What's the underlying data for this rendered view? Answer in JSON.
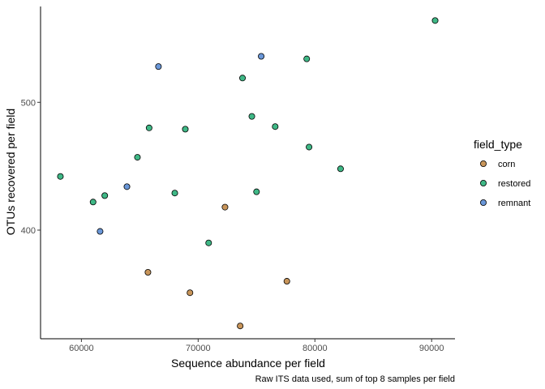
{
  "chart_data": {
    "type": "scatter",
    "xlabel": "Sequence abundance per field",
    "ylabel": "OTUs recovered per field",
    "caption": "Raw ITS data used, sum of top 8 samples per field",
    "xlim": [
      56500,
      92000
    ],
    "ylim": [
      315,
      575
    ],
    "x_ticks": [
      60000,
      70000,
      80000,
      90000
    ],
    "x_tick_labels": [
      "60000",
      "70000",
      "80000",
      "90000"
    ],
    "y_ticks": [
      400,
      500
    ],
    "y_tick_labels": [
      "400",
      "500"
    ],
    "grid": false,
    "legend": {
      "title": "field_type",
      "position": "right",
      "entries": [
        {
          "name": "corn",
          "color": "#C8955A"
        },
        {
          "name": "restored",
          "color": "#3FB886"
        },
        {
          "name": "remnant",
          "color": "#6A97D8"
        }
      ]
    },
    "series": [
      {
        "name": "corn",
        "color": "#C8955A",
        "points": [
          {
            "x": 65700,
            "y": 367
          },
          {
            "x": 69300,
            "y": 351
          },
          {
            "x": 72300,
            "y": 418
          },
          {
            "x": 73600,
            "y": 325
          },
          {
            "x": 77600,
            "y": 360
          }
        ]
      },
      {
        "name": "restored",
        "color": "#3FB886",
        "points": [
          {
            "x": 58200,
            "y": 442
          },
          {
            "x": 61000,
            "y": 422
          },
          {
            "x": 62000,
            "y": 427
          },
          {
            "x": 64800,
            "y": 457
          },
          {
            "x": 65800,
            "y": 480
          },
          {
            "x": 68000,
            "y": 429
          },
          {
            "x": 68900,
            "y": 479
          },
          {
            "x": 70900,
            "y": 390
          },
          {
            "x": 73800,
            "y": 519
          },
          {
            "x": 74600,
            "y": 489
          },
          {
            "x": 75000,
            "y": 430
          },
          {
            "x": 76600,
            "y": 481
          },
          {
            "x": 79300,
            "y": 534
          },
          {
            "x": 79500,
            "y": 465
          },
          {
            "x": 82200,
            "y": 448
          },
          {
            "x": 90300,
            "y": 564
          }
        ]
      },
      {
        "name": "remnant",
        "color": "#6A97D8",
        "points": [
          {
            "x": 61600,
            "y": 399
          },
          {
            "x": 63900,
            "y": 434
          },
          {
            "x": 66600,
            "y": 528
          },
          {
            "x": 75400,
            "y": 536
          }
        ]
      }
    ]
  }
}
